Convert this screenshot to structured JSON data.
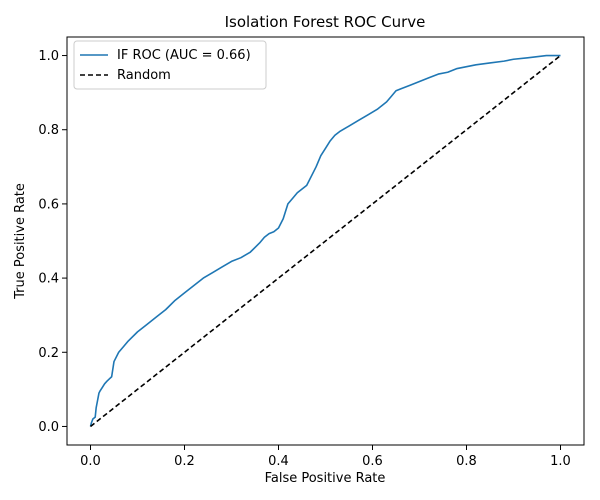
{
  "chart_data": {
    "type": "line",
    "title": "Isolation Forest ROC Curve",
    "xlabel": "False Positive Rate",
    "ylabel": "True Positive Rate",
    "xlim": [
      -0.05,
      1.05
    ],
    "ylim": [
      -0.05,
      1.05
    ],
    "xticks": [
      "0.0",
      "0.2",
      "0.4",
      "0.6",
      "0.8",
      "1.0"
    ],
    "yticks": [
      "0.0",
      "0.2",
      "0.4",
      "0.6",
      "0.8",
      "1.0"
    ],
    "grid": false,
    "legend_position": "top-left",
    "series": [
      {
        "name": "IF ROC (AUC = 0.66)",
        "color": "#1f77b4",
        "style": "solid",
        "x": [
          0.0,
          0.002,
          0.005,
          0.01,
          0.012,
          0.015,
          0.018,
          0.02,
          0.025,
          0.03,
          0.035,
          0.04,
          0.045,
          0.05,
          0.06,
          0.07,
          0.08,
          0.1,
          0.12,
          0.14,
          0.16,
          0.18,
          0.2,
          0.22,
          0.24,
          0.26,
          0.28,
          0.3,
          0.32,
          0.34,
          0.36,
          0.37,
          0.38,
          0.39,
          0.4,
          0.41,
          0.42,
          0.43,
          0.44,
          0.46,
          0.48,
          0.49,
          0.5,
          0.51,
          0.52,
          0.53,
          0.55,
          0.57,
          0.59,
          0.61,
          0.62,
          0.63,
          0.64,
          0.65,
          0.66,
          0.68,
          0.7,
          0.72,
          0.74,
          0.76,
          0.78,
          0.8,
          0.82,
          0.85,
          0.88,
          0.9,
          0.93,
          0.95,
          0.97,
          1.0
        ],
        "y": [
          0.0,
          0.01,
          0.02,
          0.025,
          0.05,
          0.07,
          0.09,
          0.095,
          0.105,
          0.115,
          0.122,
          0.128,
          0.134,
          0.175,
          0.2,
          0.215,
          0.23,
          0.255,
          0.275,
          0.295,
          0.315,
          0.34,
          0.36,
          0.38,
          0.4,
          0.415,
          0.43,
          0.445,
          0.455,
          0.47,
          0.495,
          0.51,
          0.52,
          0.525,
          0.535,
          0.56,
          0.6,
          0.615,
          0.63,
          0.65,
          0.7,
          0.73,
          0.75,
          0.77,
          0.785,
          0.795,
          0.81,
          0.825,
          0.84,
          0.855,
          0.865,
          0.875,
          0.89,
          0.905,
          0.91,
          0.92,
          0.93,
          0.94,
          0.95,
          0.955,
          0.965,
          0.97,
          0.975,
          0.98,
          0.985,
          0.99,
          0.994,
          0.997,
          1.0,
          1.0
        ]
      },
      {
        "name": "Random",
        "color": "#000000",
        "style": "dashed",
        "x": [
          0,
          1
        ],
        "y": [
          0,
          1
        ]
      }
    ]
  }
}
